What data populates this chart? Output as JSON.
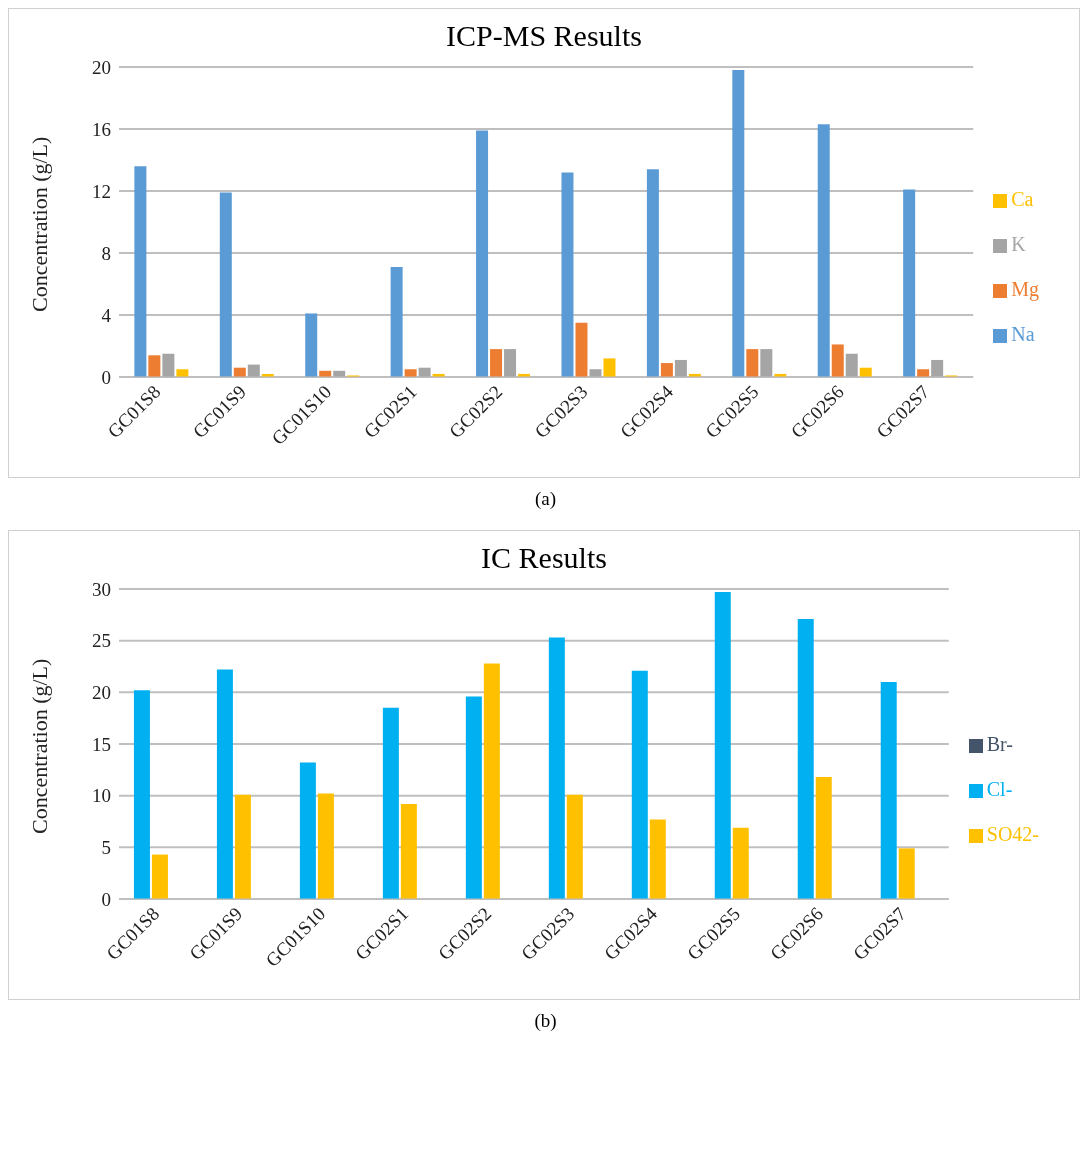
{
  "chart_data": [
    {
      "type": "bar",
      "title": "ICP-MS Results",
      "ylabel": "Concentration (g/L)",
      "categories": [
        "GC01S8",
        "GC01S9",
        "GC01S10",
        "GC02S1",
        "GC02S2",
        "GC02S3",
        "GC02S4",
        "GC02S5",
        "GC02S6",
        "GC02S7"
      ],
      "series": [
        {
          "name": "Na",
          "color": "#5b9bd5",
          "values": [
            13.6,
            11.9,
            4.1,
            7.1,
            15.9,
            13.2,
            13.4,
            19.8,
            16.3,
            12.1
          ]
        },
        {
          "name": "Mg",
          "color": "#ed7d31",
          "values": [
            1.4,
            0.6,
            0.4,
            0.5,
            1.8,
            3.5,
            0.9,
            1.8,
            2.1,
            0.5
          ]
        },
        {
          "name": "K",
          "color": "#a5a5a5",
          "values": [
            1.5,
            0.8,
            0.4,
            0.6,
            1.8,
            0.5,
            1.1,
            1.8,
            1.5,
            1.1
          ]
        },
        {
          "name": "Ca",
          "color": "#ffc000",
          "values": [
            0.5,
            0.2,
            0.1,
            0.2,
            0.2,
            1.2,
            0.2,
            0.2,
            0.6,
            0.1
          ]
        }
      ],
      "ylim": [
        0,
        20
      ],
      "yticks": [
        0,
        4,
        8,
        12,
        16,
        20
      ],
      "grid": "y",
      "legend": "right",
      "annotations": [
        "(a)"
      ]
    },
    {
      "type": "bar",
      "title": "IC Results",
      "ylabel": "Concentration (g/L)",
      "categories": [
        "GC01S8",
        "GC01S9",
        "GC01S10",
        "GC02S1",
        "GC02S2",
        "GC02S3",
        "GC02S4",
        "GC02S5",
        "GC02S6",
        "GC02S7"
      ],
      "series": [
        {
          "name": "Cl-",
          "color": "#00b0f0",
          "values": [
            20.2,
            22.2,
            13.2,
            18.5,
            19.6,
            25.3,
            22.1,
            29.7,
            27.1,
            21.0
          ]
        },
        {
          "name": "SO42-",
          "color": "#ffc000",
          "values": [
            4.3,
            10.1,
            10.2,
            9.2,
            22.8,
            10.1,
            7.7,
            6.9,
            11.8,
            4.9
          ]
        },
        {
          "name": "Br-",
          "color": "#44546a",
          "values": [
            0,
            0,
            0,
            0,
            0,
            0,
            0,
            0,
            0,
            0
          ]
        }
      ],
      "ylim": [
        0,
        30
      ],
      "yticks": [
        0,
        5,
        10,
        15,
        20,
        25,
        30
      ],
      "grid": "y",
      "legend": "right",
      "annotations": [
        "(b)"
      ]
    }
  ]
}
